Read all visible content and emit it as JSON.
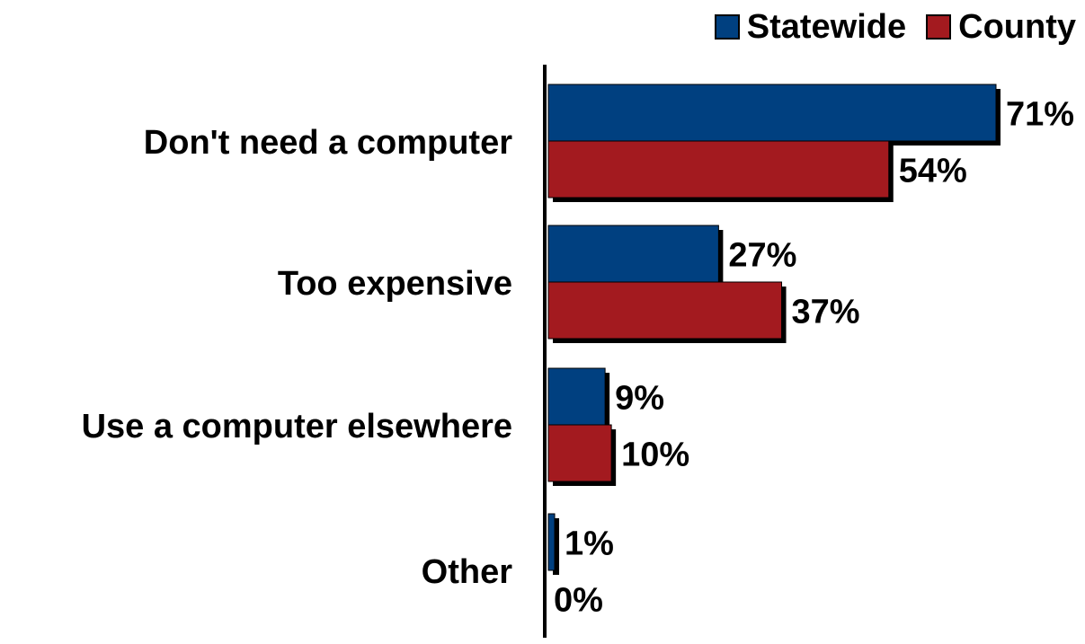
{
  "chart_data": {
    "type": "bar",
    "orientation": "horizontal",
    "categories": [
      "Don't need a computer",
      "Too expensive",
      "Use a computer elsewhere",
      "Other"
    ],
    "series": [
      {
        "name": "Statewide",
        "values": [
          71,
          27,
          9,
          1
        ],
        "labels": [
          "71%",
          "27%",
          "9%",
          "1%"
        ],
        "color": "#004080"
      },
      {
        "name": "County",
        "values": [
          54,
          37,
          10,
          0
        ],
        "labels": [
          "54%",
          "37%",
          "10%",
          "0%"
        ],
        "color": "#A31A1F"
      }
    ],
    "value_unit": "%",
    "xlim": [
      0,
      71
    ],
    "grid": false,
    "legend_position": "top-right",
    "title": "",
    "xlabel": "",
    "ylabel": ""
  }
}
